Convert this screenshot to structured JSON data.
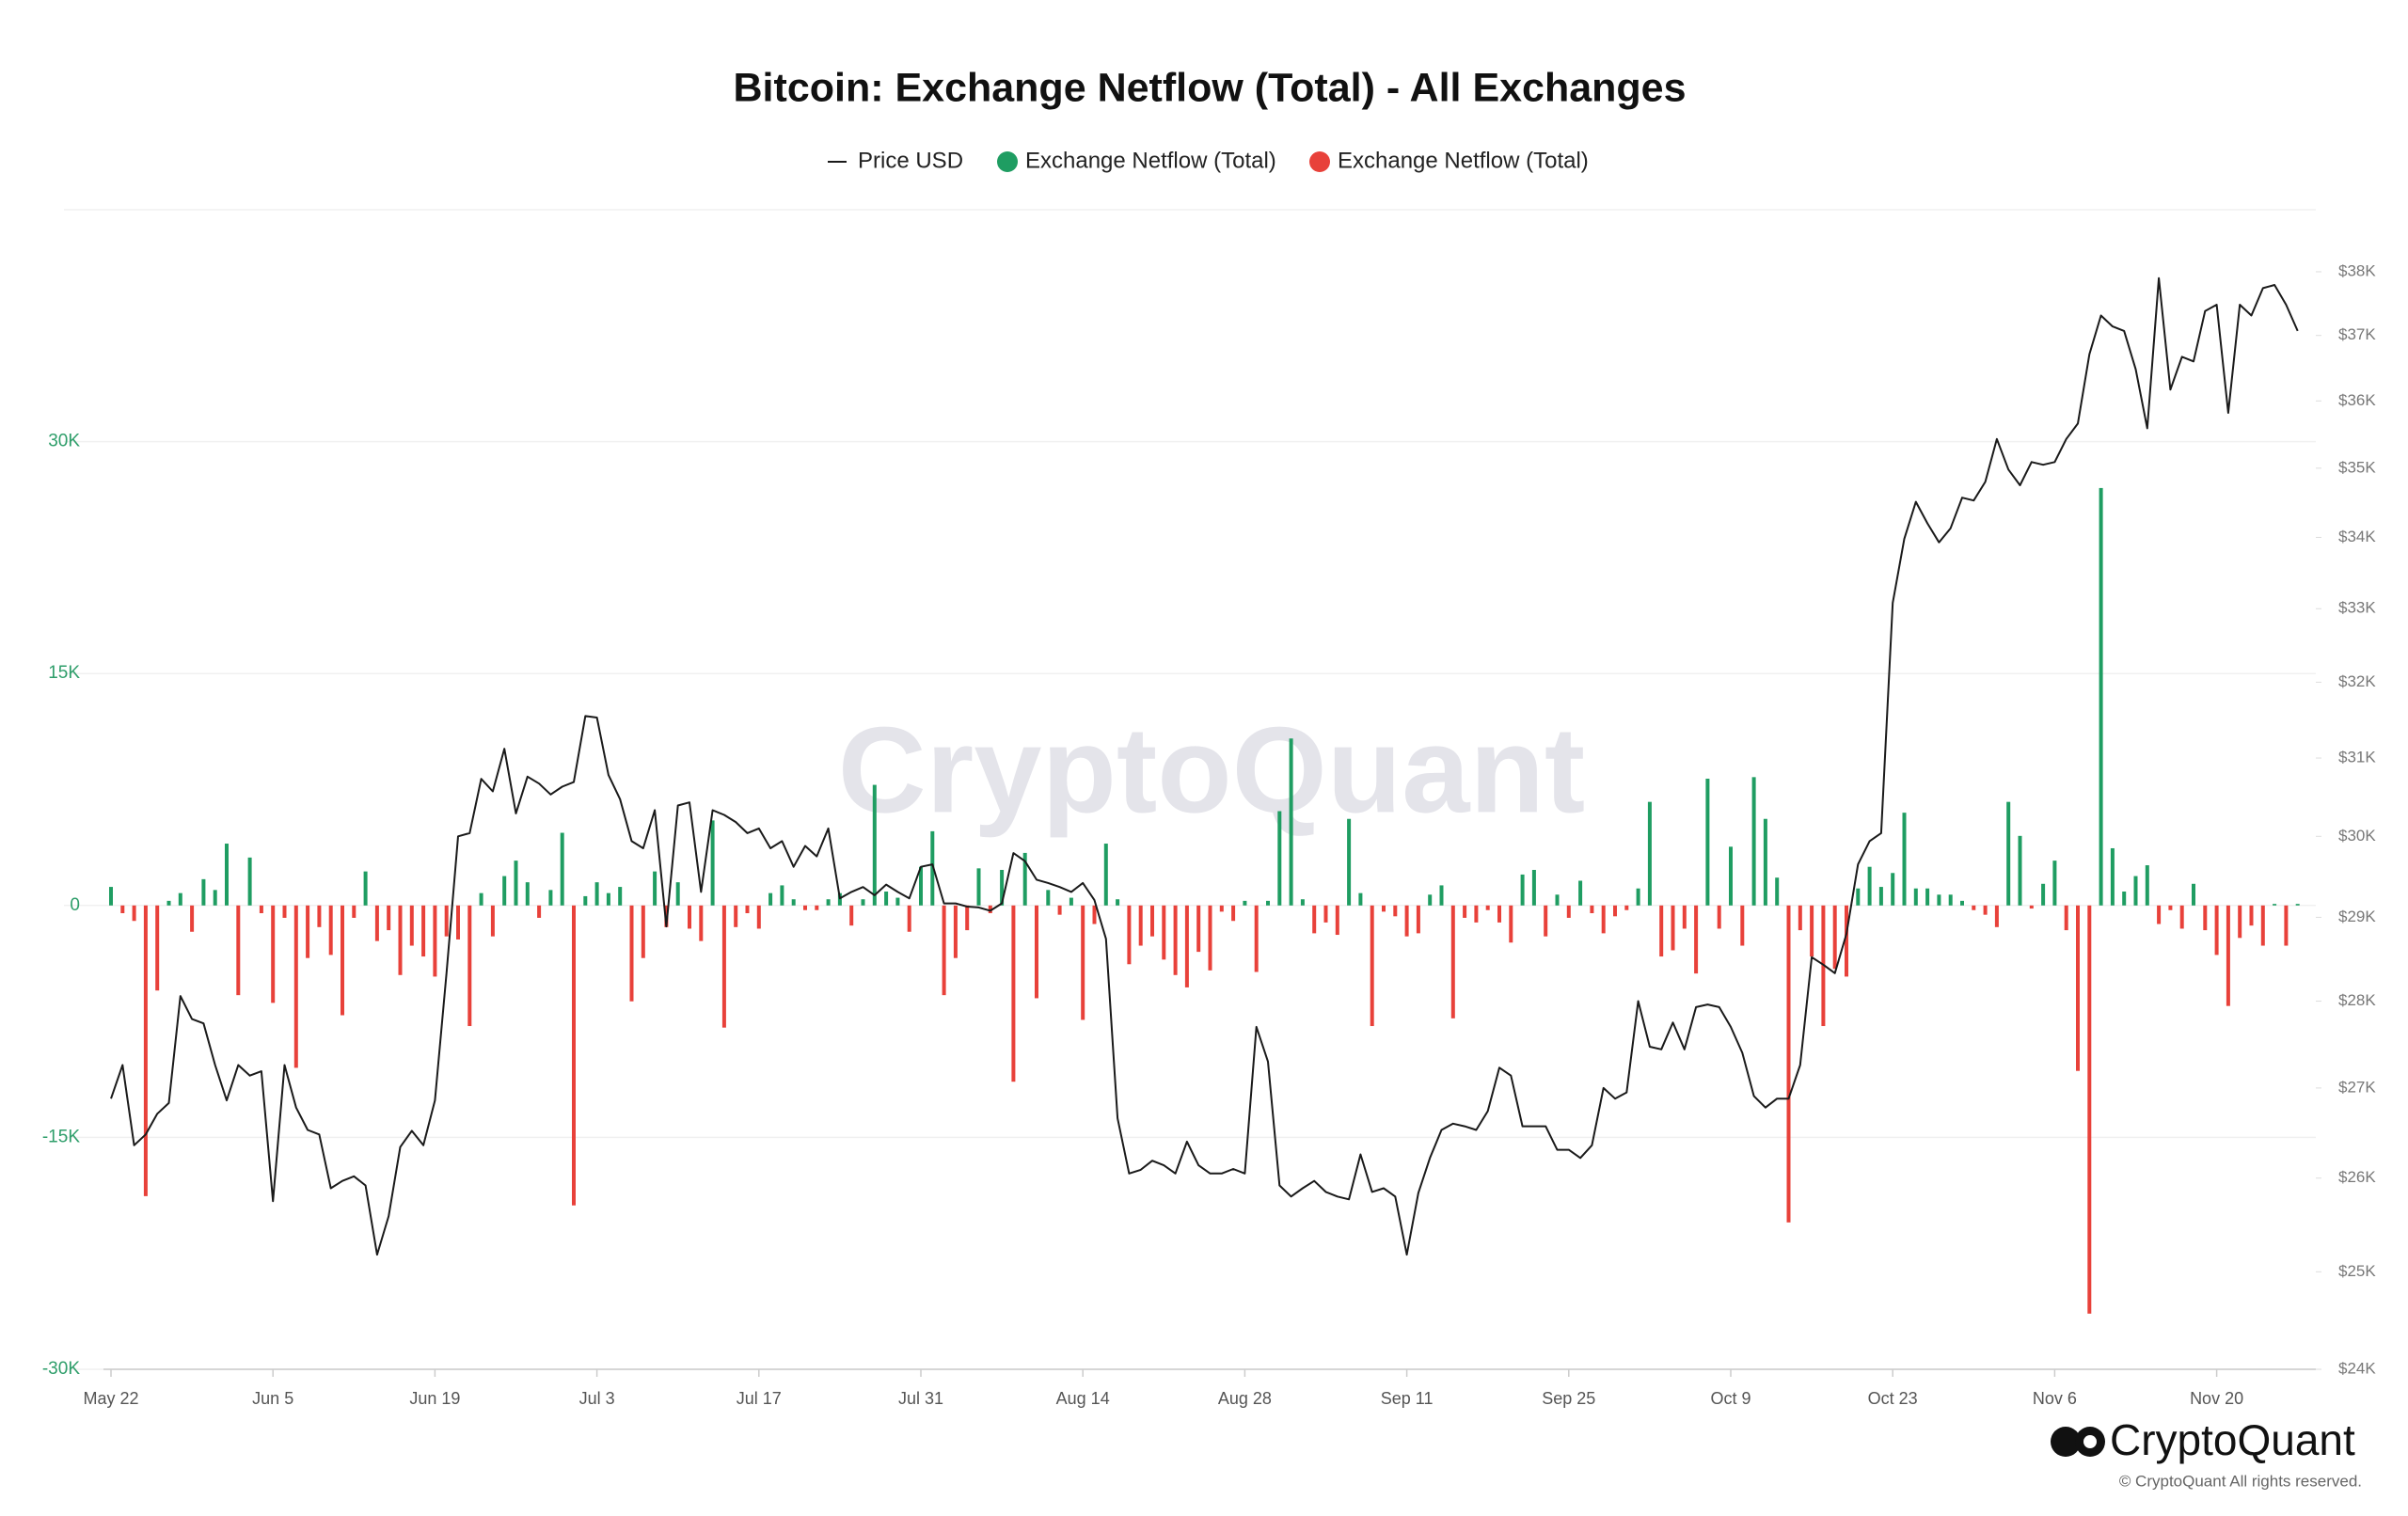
{
  "chart_data": {
    "type": "bar",
    "title": "Bitcoin: Exchange Netflow (Total) - All Exchanges",
    "watermark": "CryptoQuant",
    "logo_text": "CryptoQuant",
    "copyright": "© CryptoQuant All rights reserved.",
    "legend": "top",
    "grid": true,
    "y2log": true,
    "categories": [
      "May 22",
      null,
      null,
      null,
      null,
      null,
      null,
      null,
      null,
      null,
      null,
      null,
      null,
      null,
      "Jun 5",
      null,
      null,
      null,
      null,
      null,
      null,
      null,
      null,
      null,
      null,
      null,
      null,
      null,
      "Jun 19",
      null,
      null,
      null,
      null,
      null,
      null,
      null,
      null,
      null,
      null,
      null,
      null,
      null,
      "Jul 3",
      null,
      null,
      null,
      null,
      null,
      null,
      null,
      null,
      null,
      null,
      null,
      null,
      null,
      "Jul 17",
      null,
      null,
      null,
      null,
      null,
      null,
      null,
      null,
      null,
      null,
      null,
      null,
      null,
      "Jul 31",
      null,
      null,
      null,
      null,
      null,
      null,
      null,
      null,
      null,
      null,
      null,
      null,
      null,
      "Aug 14",
      null,
      null,
      null,
      null,
      null,
      null,
      null,
      null,
      null,
      null,
      null,
      null,
      null,
      "Aug 28",
      null,
      null,
      null,
      null,
      null,
      null,
      null,
      null,
      null,
      null,
      null,
      null,
      null,
      "Sep 11",
      null,
      null,
      null,
      null,
      null,
      null,
      null,
      null,
      null,
      null,
      null,
      null,
      null,
      "Sep 25",
      null,
      null,
      null,
      null,
      null,
      null,
      null,
      null,
      null,
      null,
      null,
      null,
      null,
      "Oct 9",
      null,
      null,
      null,
      null,
      null,
      null,
      null,
      null,
      null,
      null,
      null,
      null,
      null,
      "Oct 23",
      null,
      null,
      null,
      null,
      null,
      null,
      null,
      null,
      null,
      null,
      null,
      null,
      null,
      "Nov 6",
      null,
      null,
      null,
      null,
      null,
      null,
      null,
      null,
      null,
      null,
      null,
      null,
      null,
      "Nov 20",
      null,
      null,
      null,
      null,
      null,
      null,
      null
    ],
    "ylim": [
      -30000,
      45000
    ],
    "yticks": [
      {
        "value": -30000,
        "label": "-30K"
      },
      {
        "value": -15000,
        "label": "-15K"
      },
      0,
      {
        "value": 15000,
        "label": "15K"
      },
      {
        "value": 30000,
        "label": "30K"
      }
    ],
    "y2lim": [
      24000,
      39000
    ],
    "y2ticks": [
      {
        "value": 24000,
        "label": "$24K"
      },
      {
        "value": 25000,
        "label": "$25K"
      },
      {
        "value": 26000,
        "label": "$26K"
      },
      {
        "value": 27000,
        "label": "$27K"
      },
      {
        "value": 28000,
        "label": "$28K"
      },
      {
        "value": 29000,
        "label": "$29K"
      },
      {
        "value": 30000,
        "label": "$30K"
      },
      {
        "value": 31000,
        "label": "$31K"
      },
      {
        "value": 32000,
        "label": "$32K"
      },
      {
        "value": 33000,
        "label": "$33K"
      },
      {
        "value": 34000,
        "label": "$34K"
      },
      {
        "value": 35000,
        "label": "$35K"
      },
      {
        "value": 36000,
        "label": "$36K"
      },
      {
        "value": 37000,
        "label": "$37K"
      },
      {
        "value": 38000,
        "label": "$38K"
      }
    ],
    "series": [
      {
        "name": "Price USD",
        "type": "line",
        "axis": "y2",
        "color": "#1a1a1a",
        "values": [
          26880,
          27260,
          26360,
          26480,
          26710,
          26830,
          28060,
          27790,
          27740,
          27260,
          26860,
          27260,
          27140,
          27190,
          25750,
          27260,
          26780,
          26530,
          26480,
          25890,
          25970,
          26020,
          25920,
          25180,
          25590,
          26340,
          26520,
          26360,
          26860,
          28330,
          30000,
          30040,
          30730,
          30570,
          31120,
          30290,
          30760,
          30670,
          30530,
          30630,
          30690,
          31550,
          31530,
          30780,
          30470,
          29940,
          29850,
          30330,
          28890,
          30390,
          30430,
          29310,
          30330,
          30270,
          30180,
          30040,
          30100,
          29850,
          29940,
          29620,
          29880,
          29750,
          30100,
          29230,
          29310,
          29370,
          29270,
          29400,
          29310,
          29230,
          29620,
          29650,
          29170,
          29170,
          29130,
          29120,
          29080,
          29170,
          29790,
          29690,
          29460,
          29420,
          29370,
          29310,
          29420,
          29210,
          28740,
          26660,
          26050,
          26090,
          26190,
          26140,
          26050,
          26400,
          26140,
          26050,
          26050,
          26100,
          26050,
          27700,
          27300,
          25920,
          25800,
          25890,
          25970,
          25850,
          25800,
          25770,
          26260,
          25850,
          25890,
          25800,
          25180,
          25840,
          26220,
          26530,
          26600,
          26570,
          26530,
          26740,
          27230,
          27140,
          26570,
          26570,
          26570,
          26310,
          26310,
          26220,
          26360,
          27000,
          26880,
          26950,
          28000,
          27470,
          27440,
          27750,
          27440,
          27930,
          27960,
          27930,
          27700,
          27400,
          26910,
          26780,
          26880,
          26880,
          27260,
          28520,
          28430,
          28330,
          28800,
          29650,
          29940,
          30040,
          33080,
          33980,
          34510,
          34200,
          33930,
          34130,
          34570,
          34530,
          34800,
          35430,
          34980,
          34750,
          35090,
          35050,
          35090,
          35430,
          35660,
          36710,
          37310,
          37140,
          37070,
          36480,
          35590,
          37900,
          36170,
          36670,
          36600,
          37380,
          37480,
          35820,
          37480,
          37310,
          37740,
          37790,
          37480,
          37070
        ]
      },
      {
        "name": "Exchange Netflow (Total)",
        "type": "bar",
        "color": "#1f9d62",
        "values": [
          1200,
          null,
          null,
          null,
          null,
          300,
          800,
          null,
          1700,
          1000,
          4000,
          null,
          3100,
          null,
          null,
          null,
          null,
          null,
          null,
          null,
          null,
          null,
          2200,
          null,
          null,
          null,
          null,
          null,
          null,
          null,
          null,
          null,
          800,
          null,
          1900,
          2900,
          1500,
          null,
          1000,
          4700,
          null,
          600,
          1500,
          800,
          1200,
          null,
          null,
          2200,
          null,
          1500,
          null,
          null,
          5500,
          null,
          null,
          null,
          null,
          800,
          1300,
          400,
          null,
          null,
          400,
          800,
          null,
          400,
          7800,
          900,
          500,
          null,
          2500,
          4800,
          null,
          null,
          null,
          2400,
          null,
          2300,
          null,
          3400,
          null,
          1000,
          null,
          500,
          null,
          null,
          4000,
          400,
          null,
          null,
          null,
          null,
          null,
          null,
          null,
          null,
          null,
          null,
          300,
          null,
          300,
          6100,
          10800,
          400,
          null,
          null,
          null,
          5600,
          800,
          null,
          null,
          null,
          null,
          null,
          700,
          1300,
          null,
          null,
          null,
          null,
          null,
          null,
          2000,
          2300,
          null,
          700,
          null,
          1600,
          null,
          null,
          null,
          null,
          1100,
          6700,
          null,
          null,
          null,
          null,
          8200,
          null,
          3800,
          null,
          8300,
          5600,
          1800,
          null,
          null,
          null,
          null,
          null,
          null,
          1100,
          2500,
          1200,
          2100,
          6000,
          1100,
          1100,
          700,
          700,
          300,
          null,
          null,
          null,
          6700,
          4500,
          null,
          1400,
          2900,
          null,
          null,
          null,
          27000,
          3700,
          900,
          1900,
          2600,
          null,
          null,
          null,
          1400,
          null,
          null,
          null,
          null,
          null,
          null,
          100,
          null,
          100
        ]
      },
      {
        "name": "Exchange Netflow (Total)",
        "type": "bar",
        "color": "#e8413a",
        "values": [
          null,
          -500,
          -1000,
          -18800,
          -5500,
          null,
          null,
          -1700,
          null,
          null,
          null,
          -5800,
          null,
          -500,
          -6300,
          -800,
          -10500,
          -3400,
          -1400,
          -3200,
          -7100,
          -800,
          null,
          -2300,
          -1600,
          -4500,
          -2600,
          -3300,
          -4600,
          -2000,
          -2200,
          -7800,
          null,
          -2000,
          null,
          null,
          null,
          -800,
          null,
          null,
          -19400,
          null,
          null,
          null,
          null,
          -6200,
          -3400,
          null,
          -1400,
          null,
          -1500,
          -2300,
          null,
          -7900,
          -1400,
          -500,
          -1500,
          null,
          null,
          null,
          -300,
          -300,
          null,
          null,
          -1300,
          null,
          null,
          null,
          null,
          -1700,
          null,
          null,
          -5800,
          -3400,
          -1600,
          null,
          -500,
          null,
          -11400,
          null,
          -6000,
          null,
          -600,
          null,
          -7400,
          -1200,
          null,
          null,
          -3800,
          -2600,
          -2000,
          -3500,
          -4500,
          -5300,
          -3000,
          -4200,
          -400,
          -1000,
          null,
          -4300,
          null,
          null,
          null,
          null,
          -1800,
          -1100,
          -1900,
          null,
          null,
          -7800,
          -400,
          -700,
          -2000,
          -1800,
          null,
          null,
          -7300,
          -800,
          -1100,
          -300,
          -1100,
          -2400,
          null,
          null,
          -2000,
          null,
          -800,
          null,
          -500,
          -1800,
          -700,
          -300,
          null,
          null,
          -3300,
          -2900,
          -1500,
          -4400,
          null,
          -1500,
          null,
          -2600,
          null,
          null,
          null,
          -20500,
          -1600,
          -3300,
          -7800,
          -4100,
          -4600,
          null,
          null,
          null,
          null,
          null,
          null,
          null,
          null,
          null,
          null,
          -300,
          -600,
          -1400,
          null,
          null,
          -200,
          null,
          null,
          -1600,
          -10700,
          -26400,
          null,
          null,
          null,
          null,
          null,
          -1200,
          -300,
          -1500,
          null,
          -1600,
          -3200,
          -6500,
          -2100,
          -1300,
          -2600,
          null,
          -2600,
          null
        ]
      }
    ]
  }
}
